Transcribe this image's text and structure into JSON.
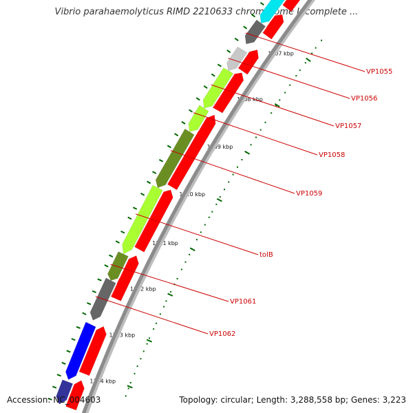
{
  "title": "Vibrio parahaemolyticus RIMD 2210633 chromosome I, complete ...",
  "footer": {
    "accession": "Accession: NC_004603",
    "summary": "Topology: circular; Length: 3,288,558 bp; Genes: 3,223"
  },
  "map": {
    "kbp_labels": [
      "1107 kbp",
      "1108 kbp",
      "1109 kbp",
      "1110 kbp",
      "1111 kbp",
      "1112 kbp",
      "1113 kbp",
      "1114 kbp"
    ],
    "gene_labels": [
      "VP1055",
      "VP1056",
      "VP1057",
      "VP1058",
      "VP1059",
      "tolB",
      "VP1061",
      "VP1062"
    ],
    "colors": {
      "backbone": "#8c8c8c",
      "forward": "#ff0000",
      "reverse_dark": "#666666",
      "reverse_light": "#c8c8c8",
      "reverse_lime": "#aaff33",
      "reverse_olive": "#6b8e23",
      "reverse_blue": "#0000ff",
      "reverse_navy": "#333399",
      "reverse_cyan": "#00e5ee",
      "ticks": "#006600",
      "label": "#cc0000"
    }
  }
}
